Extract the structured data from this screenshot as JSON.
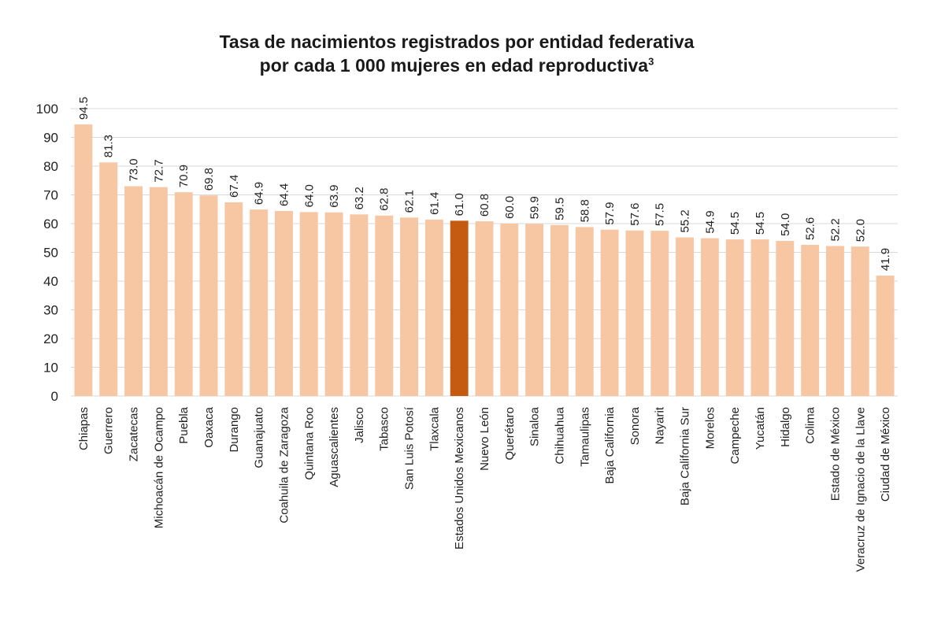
{
  "chart_data": {
    "type": "bar",
    "title_line1": "Tasa de nacimientos registrados por entidad federativa",
    "title_line2": "por cada 1 000 mujeres en edad reproductiva",
    "title_superscript": "3",
    "xlabel": "",
    "ylabel": "",
    "ylim": [
      0,
      100
    ],
    "yticks": [
      0,
      10,
      20,
      30,
      40,
      50,
      60,
      70,
      80,
      90,
      100
    ],
    "grid": true,
    "legend": "none",
    "colors": {
      "bar": "#F7C6A3",
      "highlight": "#C55A11",
      "grid": "#D9D9D9"
    },
    "highlight_category": "Estados Unidos Mexicanos",
    "categories": [
      "Chiapas",
      "Guerrero",
      "Zacatecas",
      "Michoacán de Ocampo",
      "Puebla",
      "Oaxaca",
      "Durango",
      "Guanajuato",
      "Coahuila de Zaragoza",
      "Quintana Roo",
      "Aguascalientes",
      "Jalisco",
      "Tabasco",
      "San Luis Potosí",
      "Tlaxcala",
      "Estados Unidos Mexicanos",
      "Nuevo León",
      "Querétaro",
      "Sinaloa",
      "Chihuahua",
      "Tamaulipas",
      "Baja California",
      "Sonora",
      "Nayarit",
      "Baja California Sur",
      "Morelos",
      "Campeche",
      "Yucatán",
      "Hidalgo",
      "Colima",
      "Estado de México",
      "Veracruz de Ignacio de la Llave",
      "Ciudad de México"
    ],
    "values": [
      94.5,
      81.3,
      73.0,
      72.7,
      70.9,
      69.8,
      67.4,
      64.9,
      64.4,
      64.0,
      63.9,
      63.2,
      62.8,
      62.1,
      61.4,
      61.0,
      60.8,
      60.0,
      59.9,
      59.5,
      58.8,
      57.9,
      57.6,
      57.5,
      55.2,
      54.9,
      54.5,
      54.5,
      54.0,
      52.6,
      52.2,
      52.0,
      41.9
    ],
    "value_labels": [
      "94.5",
      "81.3",
      "73.0",
      "72.7",
      "70.9",
      "69.8",
      "67.4",
      "64.9",
      "64.4",
      "64.0",
      "63.9",
      "63.2",
      "62.8",
      "62.1",
      "61.4",
      "61.0",
      "60.8",
      "60.0",
      "59.9",
      "59.5",
      "58.8",
      "57.9",
      "57.6",
      "57.5",
      "55.2",
      "54.9",
      "54.5",
      "54.5",
      "54.0",
      "52.6",
      "52.2",
      "52.0",
      "41.9"
    ]
  }
}
